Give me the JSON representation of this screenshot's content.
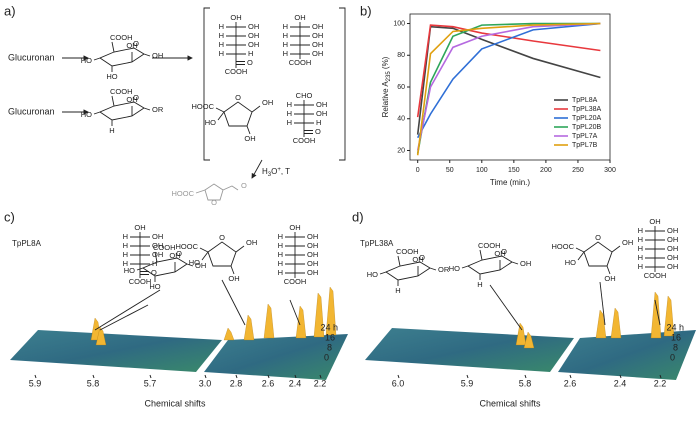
{
  "panel_labels": [
    "a)",
    "b)",
    "c)",
    "d)"
  ],
  "scheme": {
    "substrates": [
      "Glucuronan",
      "Glucuronan"
    ],
    "rings": [
      {
        "labels": [
          "COOH",
          "O",
          "HO",
          "HO",
          "OH",
          "OH"
        ]
      },
      {
        "labels": [
          "COOH",
          "O",
          "HO",
          "H",
          "OH",
          "OR"
        ]
      }
    ],
    "fischer": [
      {
        "top": "OH",
        "rows": [
          [
            "H",
            "OH"
          ],
          [
            "H",
            "OH"
          ],
          [
            "H",
            "OH"
          ],
          [
            "H",
            "H"
          ]
        ],
        "carbonyl": "O",
        "bottom": "COOH"
      },
      {
        "top": "OH",
        "rows": [
          [
            "H",
            "OH"
          ],
          [
            "H",
            "OH"
          ],
          [
            "H",
            "OH"
          ],
          [
            "H",
            "OH"
          ]
        ],
        "bottom": "COOH"
      },
      {
        "top": "CHO",
        "rows": [
          [
            "H",
            "OH"
          ],
          [
            "H",
            "OH"
          ],
          [
            "H",
            "H"
          ]
        ],
        "carbonyl": "O",
        "bottom": "COOH"
      }
    ],
    "furanose": {
      "labels": [
        "HOOC",
        "O",
        "HO",
        "OH",
        "OH"
      ]
    },
    "condition": [
      "H",
      "3",
      "O",
      "+",
      ", T"
    ],
    "product": {
      "labels": [
        "HOOC",
        "O",
        "O"
      ]
    }
  },
  "chart_data": {
    "type": "line",
    "x_label": "Time (min.)",
    "y_label": [
      "Relative A",
      "235",
      " (%)"
    ],
    "x": [
      0,
      20,
      55,
      100,
      180,
      285
    ],
    "series": [
      {
        "name": "TpPL8A",
        "color": "#444444",
        "values": [
          30,
          98,
          97,
          90,
          78,
          66
        ]
      },
      {
        "name": "TpPL38A",
        "color": "#e8383d",
        "values": [
          41,
          99,
          98,
          94,
          89,
          83
        ]
      },
      {
        "name": "TpPL20A",
        "color": "#2f6fd6",
        "values": [
          28,
          43,
          65,
          84,
          96,
          100
        ]
      },
      {
        "name": "TpPL20B",
        "color": "#2ea65a",
        "values": [
          18,
          63,
          92,
          99,
          100,
          100
        ]
      },
      {
        "name": "TpPL7A",
        "color": "#b569e0",
        "values": [
          20,
          60,
          85,
          92,
          98,
          100
        ]
      },
      {
        "name": "TpPL7B",
        "color": "#e0a010",
        "values": [
          17,
          81,
          95,
          97,
          99,
          100
        ]
      }
    ],
    "xlim": [
      -12,
      300
    ],
    "xticks": [
      0,
      50,
      100,
      150,
      200,
      250,
      300
    ],
    "ylim": [
      14,
      106
    ],
    "yticks": [
      20,
      40,
      60,
      80,
      100
    ],
    "legend": "lower right"
  },
  "spectra": [
    {
      "title": "TpPL8A",
      "x_ticks": [
        "5.9",
        "5.8",
        "5.7",
        "3.0",
        "2.8",
        "2.6",
        "2.4",
        "2.2"
      ],
      "z_ticks": [
        "24 h",
        "16",
        "8",
        "0"
      ],
      "x_label": "Chemical shifts",
      "rings": [
        {
          "labels": [
            "COOH",
            "O",
            "HO",
            "HO",
            "OH",
            "OH"
          ]
        }
      ],
      "fischer": [
        {
          "top": "OH",
          "rows": [
            [
              "H",
              "OH"
            ],
            [
              "H",
              "OH"
            ],
            [
              "H",
              "OH"
            ],
            [
              "H",
              "H"
            ]
          ],
          "carbonyl": "O",
          "bottom": "COOH"
        },
        {
          "top": "OH",
          "rows": [
            [
              "H",
              "OH"
            ],
            [
              "H",
              "OH"
            ],
            [
              "H",
              "OH"
            ],
            [
              "H",
              "OH"
            ],
            [
              "H",
              "OH"
            ]
          ],
          "bottom": "COOH"
        }
      ],
      "furanose": {
        "labels": [
          "HOOC",
          "O",
          "HO",
          "OH",
          "OH"
        ]
      }
    },
    {
      "title": "TpPL38A",
      "x_ticks": [
        "6.0",
        "5.9",
        "5.8",
        "2.6",
        "2.4",
        "2.2"
      ],
      "z_ticks": [
        "24 h",
        "16",
        "8",
        "0"
      ],
      "x_label": "Chemical shifts",
      "rings": [
        {
          "labels": [
            "COOH",
            "O",
            "HO",
            "H",
            "OH",
            "OR"
          ]
        },
        {
          "labels": [
            "COOH",
            "O",
            "HO",
            "H",
            "OH",
            "OH"
          ]
        }
      ],
      "fischer": [
        {
          "top": "OH",
          "rows": [
            [
              "H",
              "OH"
            ],
            [
              "H",
              "OH"
            ],
            [
              "H",
              "OH"
            ],
            [
              "H",
              "OH"
            ],
            [
              "H",
              "OH"
            ]
          ],
          "bottom": "COOH"
        }
      ],
      "furanose": {
        "labels": [
          "HOOC",
          "O",
          "HO",
          "OH",
          "OH"
        ]
      }
    }
  ]
}
